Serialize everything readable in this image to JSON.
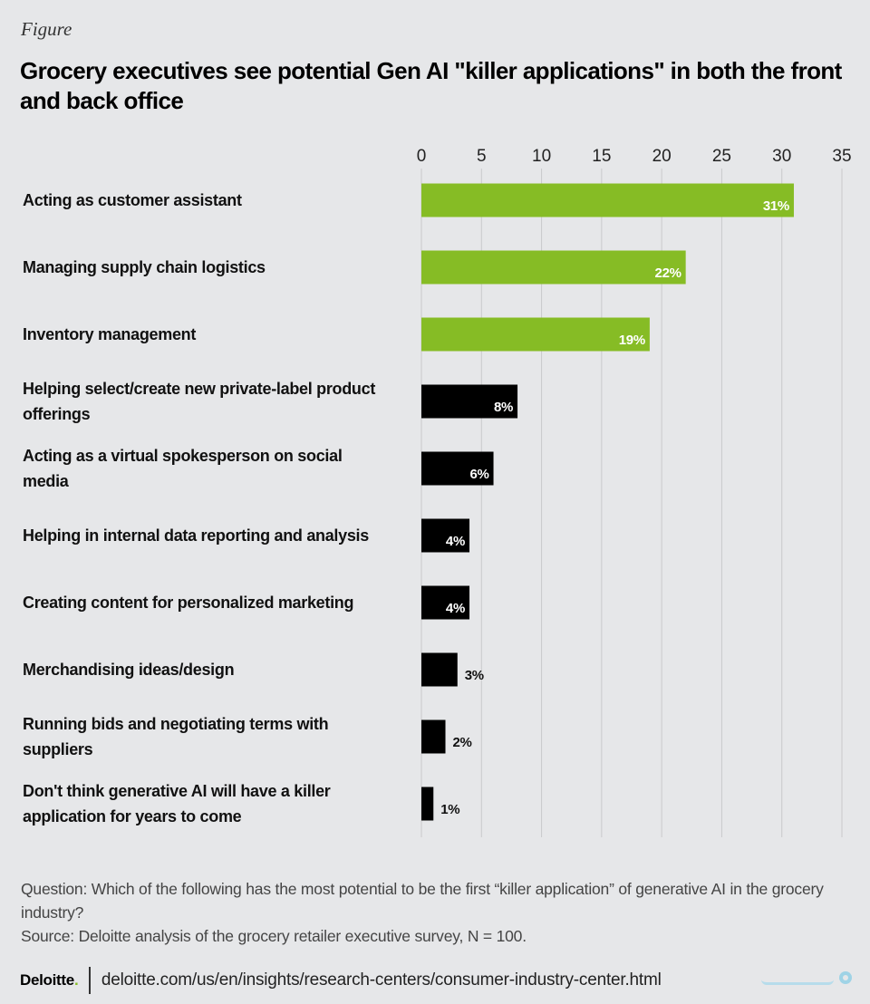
{
  "header": {
    "eyebrow": "Figure",
    "title": "Grocery executives see potential Gen AI \"killer applications\" in both the front and back office"
  },
  "chart_data": {
    "type": "bar",
    "orientation": "horizontal",
    "xlim": [
      0,
      35
    ],
    "ticks": [
      0,
      5,
      10,
      15,
      20,
      25,
      30,
      35
    ],
    "grid": true,
    "categories": [
      "Acting as customer assistant",
      "Managing supply chain logistics",
      "Inventory management",
      "Helping select/create new private-label product offerings",
      "Acting as a virtual spokesperson on social media",
      "Helping in internal data reporting and analysis",
      "Creating content for personalized marketing",
      "Merchandising ideas/design",
      "Running bids and negotiating terms with suppliers",
      "Don't think generative AI will have a killer application for years to come"
    ],
    "values": [
      31,
      22,
      19,
      8,
      6,
      4,
      4,
      3,
      2,
      1
    ],
    "value_labels": [
      "31%",
      "22%",
      "19%",
      "8%",
      "6%",
      "4%",
      "4%",
      "3%",
      "2%",
      "1%"
    ],
    "colors": [
      "#86bc25",
      "#86bc25",
      "#86bc25",
      "#000000",
      "#000000",
      "#000000",
      "#000000",
      "#000000",
      "#000000",
      "#000000"
    ]
  },
  "notes": {
    "question": "Question: Which of the following has the most potential to be the first “killer application” of generative AI in the grocery industry?",
    "source": "Source: Deloitte analysis of the grocery retailer executive survey, N = 100."
  },
  "footer": {
    "logo": "Deloitte",
    "logo_dot": ".",
    "url": "deloitte.com/us/en/insights/research-centers/consumer-industry-center.html"
  },
  "icons": {
    "watermark": "watermark-logo-icon"
  }
}
